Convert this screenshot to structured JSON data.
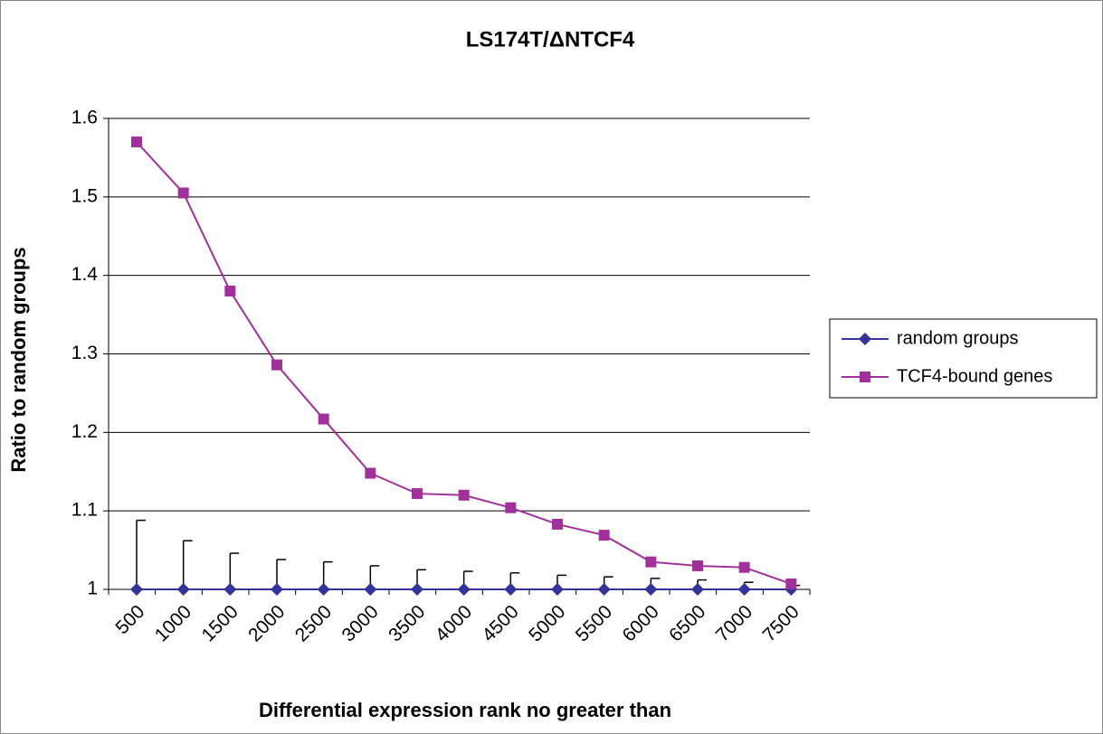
{
  "chart_data": {
    "type": "line",
    "title": "LS174T/ΔNTCF4",
    "x_label": "Differential expression rank no greater than",
    "y_label": "Ratio to random groups",
    "categories": [
      "500",
      "1000",
      "1500",
      "2000",
      "2500",
      "3000",
      "3500",
      "4000",
      "4500",
      "5000",
      "5500",
      "6000",
      "6500",
      "7000",
      "7500"
    ],
    "series": [
      {
        "name": "random groups",
        "color": "#333399",
        "marker": "diamond",
        "values": [
          1,
          1,
          1,
          1,
          1,
          1,
          1,
          1,
          1,
          1,
          1,
          1,
          1,
          1,
          1
        ],
        "errors": [
          0.088,
          0.062,
          0.046,
          0.038,
          0.035,
          0.03,
          0.025,
          0.023,
          0.021,
          0.018,
          0.016,
          0.014,
          0.012,
          0.009,
          0.005
        ]
      },
      {
        "name": "TCF4-bound genes",
        "color": "#a0309a",
        "marker": "square",
        "values": [
          1.57,
          1.505,
          1.38,
          1.286,
          1.217,
          1.148,
          1.122,
          1.12,
          1.104,
          1.083,
          1.069,
          1.035,
          1.03,
          1.028,
          1.007
        ]
      }
    ],
    "ylim": [
      1,
      1.6
    ],
    "yticks": [
      1,
      1.1,
      1.2,
      1.3,
      1.4,
      1.5,
      1.6
    ],
    "grid": true,
    "legend": "right"
  }
}
